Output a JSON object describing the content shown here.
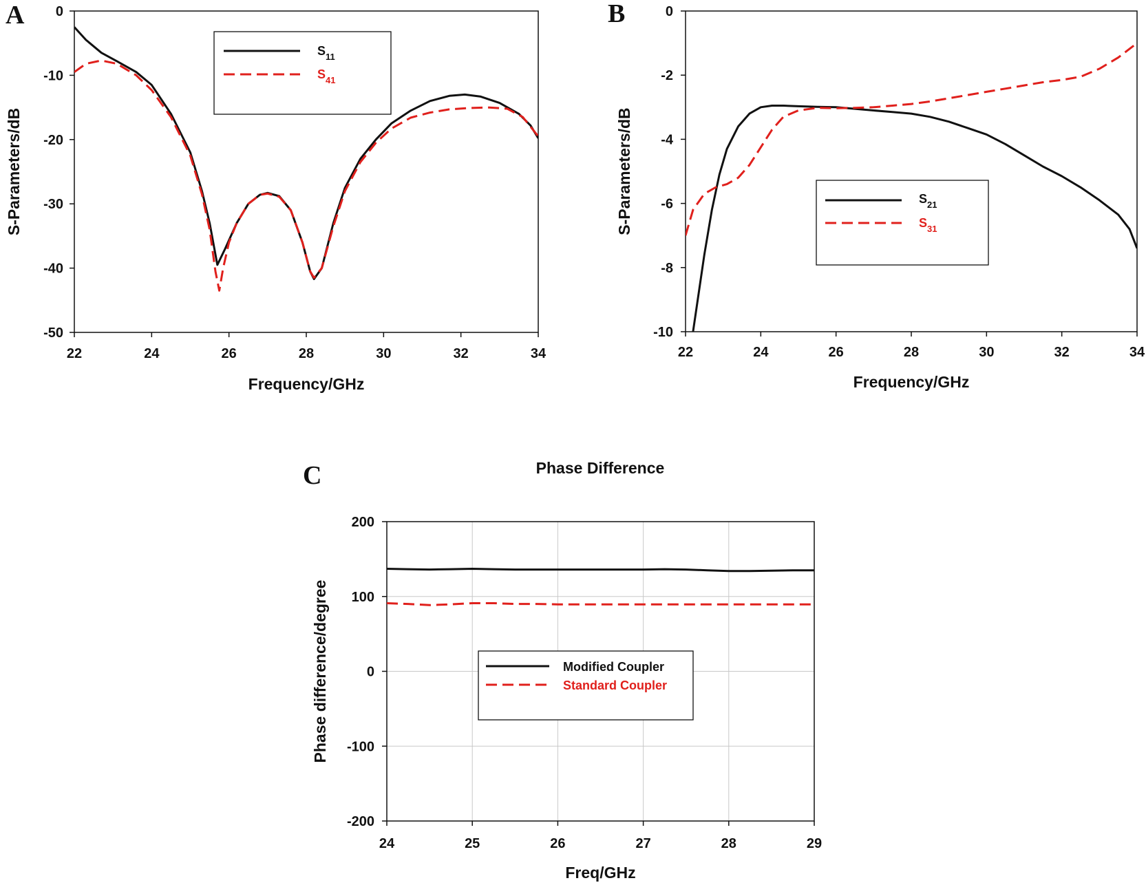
{
  "figure_labels": {
    "a": "A",
    "b": "B",
    "c": "C"
  },
  "colors": {
    "black": "#111111",
    "red": "#e0201c",
    "grid": "#c8c8c8"
  },
  "chart_data": [
    {
      "id": "A",
      "type": "line",
      "xlabel": "Frequency/GHz",
      "ylabel": "S-Parameters/dB",
      "xlim": [
        22,
        34
      ],
      "ylim": [
        -50,
        0
      ],
      "xticks": [
        22,
        24,
        26,
        28,
        30,
        32,
        34
      ],
      "yticks": [
        0,
        -10,
        -20,
        -30,
        -40,
        -50
      ],
      "grid": false,
      "legend_position": "top-center",
      "series": [
        {
          "name": "S11",
          "name_base": "S",
          "name_sub": "11",
          "color": "#111111",
          "dash": "solid",
          "x": [
            22,
            22.3,
            22.7,
            23.1,
            23.6,
            24.0,
            24.5,
            25.0,
            25.3,
            25.5,
            25.7,
            25.9,
            26.2,
            26.5,
            26.8,
            27.0,
            27.3,
            27.6,
            27.9,
            28.1,
            28.2,
            28.4,
            28.7,
            29.0,
            29.4,
            29.8,
            30.2,
            30.7,
            31.2,
            31.7,
            32.1,
            32.5,
            33.0,
            33.5,
            33.8,
            34.0
          ],
          "y": [
            -2.5,
            -4.5,
            -6.5,
            -7.8,
            -9.5,
            -11.5,
            -16,
            -22,
            -28,
            -33,
            -39.5,
            -37,
            -33,
            -30,
            -28.6,
            -28.3,
            -28.8,
            -31,
            -36,
            -40.5,
            -41.7,
            -40,
            -33,
            -27.5,
            -23,
            -20,
            -17.5,
            -15.5,
            -14,
            -13.2,
            -13,
            -13.3,
            -14.3,
            -16,
            -17.8,
            -19.8
          ]
        },
        {
          "name": "S41",
          "name_base": "S",
          "name_sub": "41",
          "color": "#e0201c",
          "dash": "dashed",
          "x": [
            22,
            22.3,
            22.7,
            23.1,
            23.6,
            24.0,
            24.5,
            25.0,
            25.3,
            25.5,
            25.65,
            25.75,
            25.85,
            26.0,
            26.2,
            26.5,
            26.8,
            27.0,
            27.3,
            27.6,
            27.9,
            28.1,
            28.2,
            28.4,
            28.7,
            29.0,
            29.4,
            29.8,
            30.2,
            30.7,
            31.2,
            31.7,
            32.2,
            32.7,
            33.2,
            33.6,
            34.0
          ],
          "y": [
            -9.5,
            -8.2,
            -7.7,
            -8.2,
            -10,
            -12.3,
            -16.5,
            -22.5,
            -28.5,
            -34,
            -40.5,
            -43.5,
            -40,
            -36,
            -33,
            -30,
            -28.6,
            -28.4,
            -28.9,
            -31,
            -36,
            -40.5,
            -41.5,
            -40,
            -33.5,
            -28,
            -23.5,
            -20.5,
            -18.3,
            -16.6,
            -15.8,
            -15.3,
            -15.1,
            -15,
            -15.2,
            -16.5,
            -19.5
          ]
        }
      ]
    },
    {
      "id": "B",
      "type": "line",
      "xlabel": "Frequency/GHz",
      "ylabel": "S-Parameters/dB",
      "xlim": [
        22,
        34
      ],
      "ylim": [
        -10,
        0
      ],
      "xticks": [
        22,
        24,
        26,
        28,
        30,
        32,
        34
      ],
      "yticks": [
        0,
        -2,
        -4,
        -6,
        -8,
        -10
      ],
      "grid": false,
      "legend_position": "center-left",
      "series": [
        {
          "name": "S21",
          "name_base": "S",
          "name_sub": "21",
          "color": "#111111",
          "dash": "solid",
          "x": [
            22.2,
            22.35,
            22.5,
            22.7,
            22.9,
            23.1,
            23.4,
            23.7,
            24.0,
            24.3,
            24.6,
            25.0,
            25.5,
            26.0,
            26.5,
            27.0,
            27.5,
            28.0,
            28.5,
            29.0,
            29.5,
            30.0,
            30.5,
            31.0,
            31.5,
            32.0,
            32.5,
            33.0,
            33.5,
            33.8,
            34.0
          ],
          "y": [
            -10,
            -8.8,
            -7.6,
            -6.2,
            -5.1,
            -4.3,
            -3.6,
            -3.2,
            -3.0,
            -2.95,
            -2.95,
            -2.97,
            -2.99,
            -3.0,
            -3.05,
            -3.1,
            -3.15,
            -3.2,
            -3.3,
            -3.45,
            -3.65,
            -3.85,
            -4.15,
            -4.5,
            -4.85,
            -5.15,
            -5.5,
            -5.9,
            -6.35,
            -6.8,
            -7.4
          ]
        },
        {
          "name": "S31",
          "name_base": "S",
          "name_sub": "31",
          "color": "#e0201c",
          "dash": "dashed",
          "x": [
            22.0,
            22.2,
            22.5,
            22.8,
            23.1,
            23.4,
            23.7,
            24.0,
            24.3,
            24.6,
            25.0,
            25.5,
            26.0,
            26.5,
            27.0,
            27.5,
            28.0,
            28.5,
            29.0,
            29.5,
            30.0,
            30.5,
            31.0,
            31.5,
            32.0,
            32.5,
            33.0,
            33.5,
            34.0
          ],
          "y": [
            -7.0,
            -6.2,
            -5.7,
            -5.5,
            -5.4,
            -5.2,
            -4.8,
            -4.25,
            -3.7,
            -3.3,
            -3.1,
            -3.02,
            -3.03,
            -3.02,
            -3.0,
            -2.95,
            -2.9,
            -2.82,
            -2.72,
            -2.62,
            -2.52,
            -2.42,
            -2.32,
            -2.22,
            -2.15,
            -2.05,
            -1.8,
            -1.45,
            -1.0
          ]
        }
      ]
    },
    {
      "id": "C",
      "type": "line",
      "title": "Phase Difference",
      "xlabel": "Freq/GHz",
      "ylabel": "Phase difference/degree",
      "xlim": [
        24,
        29
      ],
      "ylim": [
        -200,
        200
      ],
      "xticks": [
        24,
        25,
        26,
        27,
        28,
        29
      ],
      "yticks": [
        200,
        100,
        0,
        -100,
        -200
      ],
      "grid": true,
      "legend_position": "center",
      "series": [
        {
          "name": "Modified Coupler",
          "color": "#111111",
          "dash": "solid",
          "x": [
            24,
            24.25,
            24.5,
            24.75,
            25,
            25.25,
            25.5,
            25.75,
            26,
            26.25,
            26.5,
            26.75,
            27,
            27.25,
            27.5,
            27.75,
            28,
            28.25,
            28.5,
            28.75,
            29
          ],
          "y": [
            137,
            136.5,
            136,
            136.5,
            137,
            136.5,
            136,
            136,
            136,
            136,
            136,
            136,
            136,
            136.5,
            136,
            135,
            134,
            134,
            134.5,
            135,
            135
          ]
        },
        {
          "name": "Standard Coupler",
          "color": "#e0201c",
          "dash": "dashed",
          "x": [
            24,
            24.25,
            24.5,
            24.75,
            25,
            25.25,
            25.5,
            25.75,
            26,
            26.25,
            26.5,
            26.75,
            27,
            27.25,
            27.5,
            27.75,
            28,
            28.25,
            28.5,
            28.75,
            29
          ],
          "y": [
            91,
            90,
            88.5,
            89.5,
            91,
            91,
            90,
            90,
            89.5,
            89.5,
            89.5,
            89.5,
            89.5,
            89.5,
            89.5,
            89.5,
            89.5,
            89.5,
            89.5,
            89.5,
            89.5
          ]
        }
      ]
    }
  ]
}
